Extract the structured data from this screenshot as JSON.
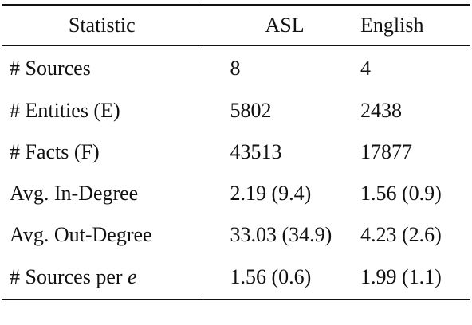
{
  "table": {
    "headers": [
      "Statistic",
      "ASL",
      "English"
    ],
    "rows": [
      {
        "label": "# Sources",
        "label_var": "",
        "asl": "8",
        "english": "4"
      },
      {
        "label": "# Entities (E)",
        "label_var": "",
        "asl": "5802",
        "english": "2438"
      },
      {
        "label": "# Facts (F)",
        "label_var": "",
        "asl": "43513",
        "english": "17877"
      },
      {
        "label": "Avg. In-Degree",
        "label_var": "",
        "asl": "2.19 (9.4)",
        "english": "1.56 (0.9)"
      },
      {
        "label": "Avg. Out-Degree",
        "label_var": "",
        "asl": "33.03 (34.9)",
        "english": "4.23 (2.6)"
      },
      {
        "label": "# Sources per ",
        "label_var": "e",
        "asl": "1.56 (0.6)",
        "english": "1.99 (1.1)"
      }
    ]
  }
}
